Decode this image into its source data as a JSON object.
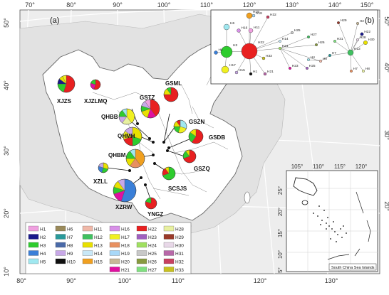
{
  "panel_a_label": "(a)",
  "panel_b_label": "(b)",
  "axes": {
    "top_lon": [
      "70°",
      "80°",
      "90°",
      "100°",
      "110°",
      "120°",
      "130°",
      "140°",
      "150°"
    ],
    "left_lat": [
      "50°",
      "40°",
      "30°",
      "20°",
      "10°"
    ],
    "bottom_lon": [
      "80°",
      "90°",
      "100°",
      "110°",
      "120°",
      "130°"
    ],
    "right_lat": [
      "50°",
      "40°",
      "30°",
      "20°"
    ]
  },
  "inset": {
    "top_lon": [
      "105°",
      "110°",
      "115°",
      "120°"
    ],
    "left_lat": [
      "25°",
      "20°",
      "15°",
      "10°",
      "5°"
    ],
    "caption": "South China Sea Islands"
  },
  "colors": {
    "H1": "#f0a0e0",
    "H2": "#1a1a8c",
    "H3": "#2ecc2e",
    "H4": "#3a7fd8",
    "H5": "#a0e8f0",
    "H6": "#9a8a5a",
    "H7": "#2a9a9a",
    "H8": "#4a6aa8",
    "H9": "#c8a8e8",
    "H10": "#101010",
    "H11": "#f0b8a8",
    "H12": "#40c060",
    "H13": "#e8e000",
    "H14": "#c8e8f8",
    "H15": "#f0a020",
    "H16": "#d890e8",
    "H17": "#f0f020",
    "H18": "#e89060",
    "H19": "#a8d8f8",
    "H20": "#c8b898",
    "H21": "#e010a0",
    "H22": "#e82020",
    "H23": "#a060c0",
    "H24": "#a0e060",
    "H25": "#c8c8c8",
    "H26": "#889a40",
    "H27": "#80e080",
    "H28": "#e8f0a0",
    "H29": "#9a3a2a",
    "H30": "#e8d8e8",
    "H31": "#b868a8",
    "H32": "#c84060",
    "H33": "#c8c020"
  },
  "sites": [
    {
      "name": "XJZS",
      "slices": [
        [
          "H22",
          0.55
        ],
        [
          "H3",
          0.2
        ],
        [
          "H2",
          0.1
        ],
        [
          "H13",
          0.08
        ],
        [
          "H17",
          0.07
        ]
      ]
    },
    {
      "name": "XJZLMQ",
      "slices": [
        [
          "H22",
          0.55
        ],
        [
          "H21",
          0.25
        ],
        [
          "H3",
          0.2
        ]
      ]
    },
    {
      "name": "GSML",
      "slices": [
        [
          "H22",
          0.75
        ],
        [
          "H13",
          0.15
        ],
        [
          "H3",
          0.1
        ]
      ]
    },
    {
      "name": "GSTZ",
      "slices": [
        [
          "H22",
          0.4
        ],
        [
          "H21",
          0.15
        ],
        [
          "H13",
          0.15
        ],
        [
          "H3",
          0.1
        ],
        [
          "H9",
          0.1
        ],
        [
          "H1",
          0.1
        ]
      ]
    },
    {
      "name": "QHBB",
      "slices": [
        [
          "H17",
          0.4
        ],
        [
          "H28",
          0.2
        ],
        [
          "H9",
          0.15
        ],
        [
          "H3",
          0.15
        ],
        [
          "H5",
          0.1
        ]
      ]
    },
    {
      "name": "QHMH",
      "slices": [
        [
          "H13",
          0.3
        ],
        [
          "H3",
          0.2
        ],
        [
          "H22",
          0.2
        ],
        [
          "H17",
          0.15
        ],
        [
          "H9",
          0.15
        ]
      ]
    },
    {
      "name": "GSZN",
      "slices": [
        [
          "H5",
          0.3
        ],
        [
          "H17",
          0.25
        ],
        [
          "H3",
          0.2
        ],
        [
          "H13",
          0.15
        ],
        [
          "H22",
          0.1
        ]
      ]
    },
    {
      "name": "GSDB",
      "slices": [
        [
          "H22",
          0.6
        ],
        [
          "H3",
          0.25
        ],
        [
          "H13",
          0.15
        ]
      ]
    },
    {
      "name": "QHBM",
      "slices": [
        [
          "H15",
          0.4
        ],
        [
          "H18",
          0.2
        ],
        [
          "H13",
          0.15
        ],
        [
          "H3",
          0.15
        ],
        [
          "H5",
          0.1
        ]
      ]
    },
    {
      "name": "GSZQ",
      "slices": [
        [
          "H22",
          0.7
        ],
        [
          "H3",
          0.2
        ],
        [
          "H13",
          0.1
        ]
      ]
    },
    {
      "name": "XZLL",
      "slices": [
        [
          "H13",
          0.3
        ],
        [
          "H3",
          0.25
        ],
        [
          "H4",
          0.25
        ],
        [
          "H9",
          0.2
        ]
      ]
    },
    {
      "name": "SCSJS",
      "slices": [
        [
          "H3",
          0.7
        ],
        [
          "H22",
          0.2
        ],
        [
          "H13",
          0.1
        ]
      ]
    },
    {
      "name": "XZRW",
      "slices": [
        [
          "H4",
          0.55
        ],
        [
          "H21",
          0.15
        ],
        [
          "H3",
          0.1
        ],
        [
          "H13",
          0.1
        ],
        [
          "H9",
          0.1
        ]
      ]
    },
    {
      "name": "YNGZ",
      "slices": [
        [
          "H22",
          0.8
        ],
        [
          "H3",
          0.2
        ]
      ]
    }
  ],
  "network": {
    "nodes": [
      "H6",
      "H3",
      "H22",
      "H4",
      "H17",
      "H15",
      "H16",
      "H1",
      "H32",
      "H19",
      "H25",
      "H14",
      "H24",
      "H9",
      "H10",
      "H31",
      "H33",
      "H21",
      "H23",
      "H11",
      "H26",
      "H12",
      "H5",
      "H7",
      "H8",
      "H27",
      "H29",
      "H20",
      "H2",
      "H13",
      "H18",
      "H28",
      "H30"
    ]
  },
  "legend": {
    "items": [
      "H1",
      "H2",
      "H3",
      "H4",
      "H5",
      "H6",
      "H7",
      "H8",
      "H9",
      "H10",
      "H11",
      "H12",
      "H13",
      "H14",
      "H15",
      "H16",
      "H17",
      "H18",
      "H19",
      "H20",
      "H21",
      "H22",
      "H23",
      "H24",
      "H25",
      "H26",
      "H27",
      "H28",
      "H29",
      "H30",
      "H31",
      "H32",
      "H33"
    ]
  }
}
